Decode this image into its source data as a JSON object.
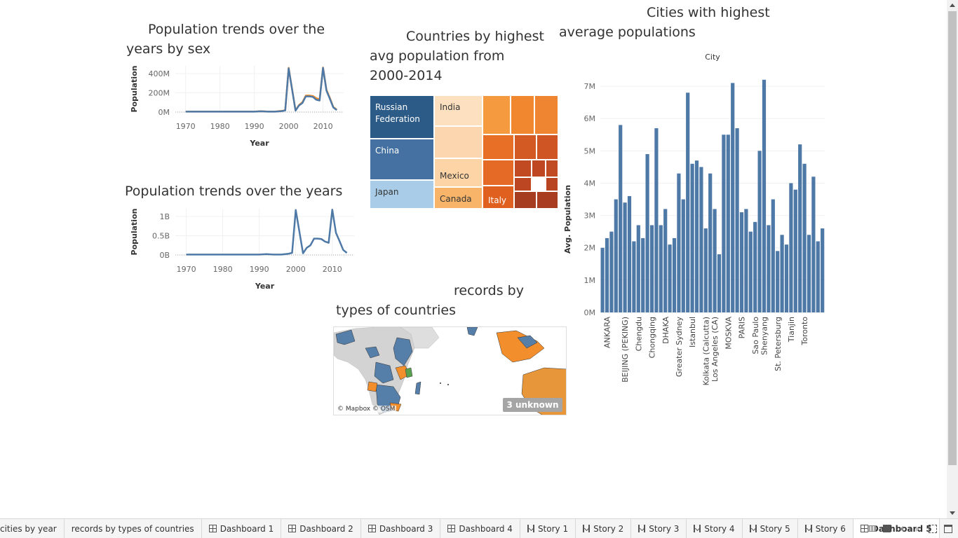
{
  "titles": {
    "sex_chart": [
      "Population trends over the",
      "years by sex"
    ],
    "years_chart": "Population trends over the years",
    "treemap": [
      "Countries by highest",
      "avg population from",
      "2000-2014"
    ],
    "map": [
      "records by",
      "types of countries"
    ],
    "cities_chart": [
      "Cities with highest",
      "average populations"
    ]
  },
  "chart_data": [
    {
      "type": "line",
      "name_ref": "sex_chart",
      "xlabel": "Year",
      "ylabel": "Population",
      "x_ticks": [
        "1970",
        "1980",
        "1990",
        "2000",
        "2010"
      ],
      "y_ticks": [
        "0M",
        "200M",
        "400M"
      ],
      "ylim": [
        0,
        560
      ],
      "xlim": [
        1967,
        2016
      ],
      "series": [
        {
          "color": "#f28e2b",
          "x": [
            1970,
            1975,
            1980,
            1985,
            1990,
            1992,
            1994,
            1996,
            1998,
            1999,
            2000,
            2002,
            2003,
            2004,
            2005,
            2006,
            2007,
            2008,
            2009,
            2010,
            2011,
            2012,
            2013,
            2014
          ],
          "y": [
            6,
            6,
            6,
            6,
            6,
            10,
            6,
            6,
            14,
            22,
            535,
            20,
            85,
            120,
            200,
            200,
            195,
            170,
            150,
            540,
            270,
            170,
            60,
            30
          ]
        },
        {
          "color": "#4e79a7",
          "x": [
            1970,
            1975,
            1980,
            1985,
            1990,
            1992,
            1994,
            1996,
            1998,
            1999,
            2000,
            2002,
            2003,
            2004,
            2005,
            2006,
            2007,
            2008,
            2009,
            2010,
            2011,
            2012,
            2013,
            2014
          ],
          "y": [
            5,
            5,
            5,
            5,
            5,
            9,
            5,
            5,
            12,
            20,
            530,
            18,
            80,
            110,
            190,
            190,
            185,
            150,
            140,
            535,
            260,
            160,
            55,
            25
          ]
        }
      ]
    },
    {
      "type": "line",
      "name_ref": "years_chart",
      "xlabel": "Year",
      "ylabel": "Population",
      "x_ticks": [
        "1970",
        "1980",
        "1990",
        "2000",
        "2010"
      ],
      "y_ticks": [
        "0B",
        "0.5B",
        "1B"
      ],
      "ylim": [
        0,
        1.1
      ],
      "xlim": [
        1967,
        2016
      ],
      "series": [
        {
          "color": "#4e79a7",
          "x": [
            1970,
            1975,
            1980,
            1985,
            1990,
            1992,
            1994,
            1996,
            1998,
            1999,
            2000,
            2002,
            2003,
            2004,
            2005,
            2006,
            2007,
            2008,
            2009,
            2010,
            2011,
            2012,
            2013,
            2014
          ],
          "y": [
            0.01,
            0.01,
            0.01,
            0.01,
            0.01,
            0.02,
            0.01,
            0.01,
            0.03,
            0.05,
            1.07,
            0.04,
            0.17,
            0.23,
            0.39,
            0.39,
            0.38,
            0.32,
            0.29,
            1.08,
            0.53,
            0.33,
            0.12,
            0.05
          ]
        }
      ]
    },
    {
      "type": "bar",
      "name_ref": "cities_chart",
      "header": "City",
      "ylabel": "Avg. Population",
      "y_ticks": [
        "0M",
        "1M",
        "2M",
        "3M",
        "4M",
        "5M",
        "6M",
        "7M"
      ],
      "ylim": [
        0,
        7.5
      ],
      "color": "#4e79a7",
      "visible_labels": [
        "ANKARA",
        "BEIJING (PEKING)",
        "Chengdu",
        "Chongqing",
        "DHAKA",
        "Greater Sydney",
        "Istanbul",
        "Kolkata (Calcutta)",
        "Los Angeles (CA)",
        "MOSKVA",
        "PARIS",
        "Sao Paulo",
        "Shenyang",
        "St. Petersburg",
        "Tianjin",
        "Toronto"
      ],
      "label_bar_index": [
        1,
        5,
        8,
        11,
        14,
        17,
        20,
        23,
        25,
        28,
        31,
        34,
        36,
        39,
        42,
        45
      ],
      "values": [
        2.0,
        2.3,
        2.5,
        3.5,
        5.8,
        3.4,
        3.6,
        2.2,
        2.7,
        2.3,
        4.9,
        2.7,
        5.7,
        2.7,
        3.2,
        2.1,
        2.3,
        4.3,
        3.5,
        6.8,
        4.6,
        4.7,
        4.5,
        2.6,
        4.3,
        3.2,
        1.8,
        5.5,
        5.5,
        7.1,
        5.7,
        3.1,
        3.2,
        2.5,
        2.8,
        5.0,
        7.2,
        2.7,
        3.5,
        1.9,
        2.4,
        2.1,
        4.0,
        3.8,
        5.2,
        4.6,
        2.4,
        4.2,
        2.2,
        2.6
      ]
    },
    {
      "type": "treemap",
      "name_ref": "treemap",
      "cells": [
        {
          "label": "Russian Federation",
          "color": "#2c5b88",
          "text_color": "#ffffff"
        },
        {
          "label": "China",
          "color": "#4471a1",
          "text_color": "#ffffff"
        },
        {
          "label": "Japan",
          "color": "#a9cde8",
          "text_color": "#333333"
        },
        {
          "label": "India",
          "color": "#fde0bf",
          "text_color": "#333333"
        },
        {
          "label": "",
          "color": "#fcd6ae",
          "text_color": "#333333"
        },
        {
          "label": "Mexico",
          "color": "#fcd4a6",
          "text_color": "#333333"
        },
        {
          "label": "Canada",
          "color": "#f8b56a",
          "text_color": "#333333"
        },
        {
          "label": "",
          "color": "#f59a3f",
          "text_color": "#ffffff"
        },
        {
          "label": "",
          "color": "#f1872f",
          "text_color": "#ffffff"
        },
        {
          "label": "",
          "color": "#ef8531",
          "text_color": "#ffffff"
        },
        {
          "label": "",
          "color": "#e86f26",
          "text_color": "#ffffff"
        },
        {
          "label": "",
          "color": "#d45a23",
          "text_color": "#ffffff"
        },
        {
          "label": "",
          "color": "#cf5524",
          "text_color": "#ffffff"
        },
        {
          "label": "",
          "color": "#e56a25",
          "text_color": "#ffffff"
        },
        {
          "label": "",
          "color": "#c24a22",
          "text_color": "#ffffff"
        },
        {
          "label": "",
          "color": "#bf4822",
          "text_color": "#ffffff"
        },
        {
          "label": "",
          "color": "#c14b22",
          "text_color": "#ffffff"
        },
        {
          "label": "",
          "color": "#bc4622",
          "text_color": "#ffffff"
        },
        {
          "label": "",
          "color": "#b94422",
          "text_color": "#ffffff"
        },
        {
          "label": "Italy",
          "color": "#e0601f",
          "text_color": "#ffffff"
        },
        {
          "label": "",
          "color": "#a63c20",
          "text_color": "#ffffff"
        },
        {
          "label": "",
          "color": "#a83d20",
          "text_color": "#ffffff"
        }
      ]
    }
  ],
  "map": {
    "credit": "© Mapbox © OSM",
    "unknown_badge": "3 unknown",
    "colors": {
      "blue": "#557ea9",
      "orange": "#f28e2b",
      "green": "#59a14f",
      "land": "#d3d3d3",
      "water": "#ffffff"
    }
  },
  "tabs": [
    {
      "label": "cities by year",
      "icon": "none",
      "active": false
    },
    {
      "label": "records by types of countries",
      "icon": "none",
      "active": false
    },
    {
      "label": "Dashboard 1",
      "icon": "dashboard-icon",
      "active": false
    },
    {
      "label": "Dashboard 2",
      "icon": "dashboard-icon",
      "active": false
    },
    {
      "label": "Dashboard 3",
      "icon": "dashboard-icon",
      "active": false
    },
    {
      "label": "Dashboard 4",
      "icon": "dashboard-icon",
      "active": false
    },
    {
      "label": "Story 1",
      "icon": "story-icon",
      "active": false
    },
    {
      "label": "Story 2",
      "icon": "story-icon",
      "active": false
    },
    {
      "label": "Story 3",
      "icon": "story-icon",
      "active": false
    },
    {
      "label": "Story 4",
      "icon": "story-icon",
      "active": false
    },
    {
      "label": "Story 5",
      "icon": "story-icon",
      "active": false
    },
    {
      "label": "Story 6",
      "icon": "story-icon",
      "active": false
    },
    {
      "label": "Dashboard 5",
      "icon": "dashboard-icon",
      "active": true
    }
  ]
}
